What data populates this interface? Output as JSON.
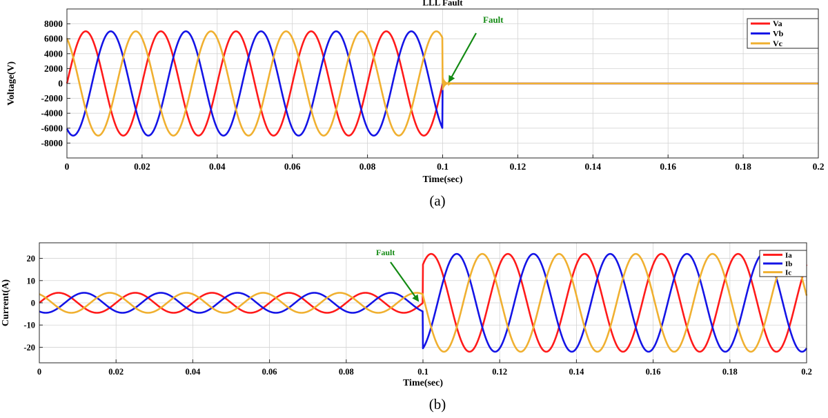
{
  "chart_data": [
    {
      "type": "line",
      "title": "LLL Fault",
      "xlabel": "Time(sec)",
      "ylabel": "Voltage(V)",
      "caption": "(a)",
      "xlim": [
        0,
        0.2
      ],
      "ylim": [
        -10000,
        10000
      ],
      "xticks": [
        0,
        0.02,
        0.04,
        0.06,
        0.08,
        0.1,
        0.12,
        0.14,
        0.16,
        0.18,
        0.2
      ],
      "xtick_labels": [
        "0",
        "0.02",
        "0.04",
        "0.06",
        "0.08",
        "0.1",
        "0.12",
        "0.14",
        "0.16",
        "0.18",
        "0.2"
      ],
      "yticks": [
        8000,
        6000,
        4000,
        2000,
        0,
        -2000,
        -4000,
        -6000,
        -8000
      ],
      "ytick_labels": [
        "8000",
        "6000",
        "4000",
        "2000",
        "0",
        "-2000",
        "-4000",
        "-6000",
        "-8000"
      ],
      "grid": true,
      "legend_position": "top-right",
      "fault_time": 0.1,
      "annotation": {
        "text": "Fault",
        "x": 0.1005,
        "y": 0
      },
      "series": [
        {
          "name": "Va",
          "color": "#ff1a1a",
          "amplitude_pre": 7000,
          "amplitude_post": 0,
          "phase_deg": 0
        },
        {
          "name": "Vb",
          "color": "#1414e6",
          "amplitude_pre": 7000,
          "amplitude_post": 0,
          "phase_deg": -120
        },
        {
          "name": "Vc",
          "color": "#f0b030",
          "amplitude_pre": 7000,
          "amplitude_post": 0,
          "phase_deg": 120
        }
      ],
      "frequency_hz": 50
    },
    {
      "type": "line",
      "title": "",
      "xlabel": "Time(sec)",
      "ylabel": "Current(A)",
      "caption": "(b)",
      "xlim": [
        0,
        0.2
      ],
      "ylim": [
        -27,
        27
      ],
      "xticks": [
        0,
        0.02,
        0.04,
        0.06,
        0.08,
        0.1,
        0.12,
        0.14,
        0.16,
        0.18,
        0.2
      ],
      "xtick_labels": [
        "0",
        "0.02",
        "0.04",
        "0.06",
        "0.08",
        "0.1",
        "0.12",
        "0.14",
        "0.16",
        "0.18",
        "0.2"
      ],
      "yticks": [
        20,
        10,
        0,
        -10,
        -20
      ],
      "ytick_labels": [
        "20",
        "10",
        "0",
        "-10",
        "-20"
      ],
      "grid": true,
      "legend_position": "top-right",
      "fault_time": 0.1,
      "annotation": {
        "text": "Fault",
        "x": 0.0995,
        "y": 0
      },
      "series": [
        {
          "name": "Ia",
          "color": "#ff1a1a",
          "amplitude_pre": 4.5,
          "amplitude_post": 22,
          "phase_deg": 0
        },
        {
          "name": "Ib",
          "color": "#1414e6",
          "amplitude_pre": 4.5,
          "amplitude_post": 22,
          "phase_deg": -120
        },
        {
          "name": "Ic",
          "color": "#f0b030",
          "amplitude_pre": 4.5,
          "amplitude_post": 22,
          "phase_deg": 120
        }
      ],
      "frequency_hz": 50
    }
  ]
}
